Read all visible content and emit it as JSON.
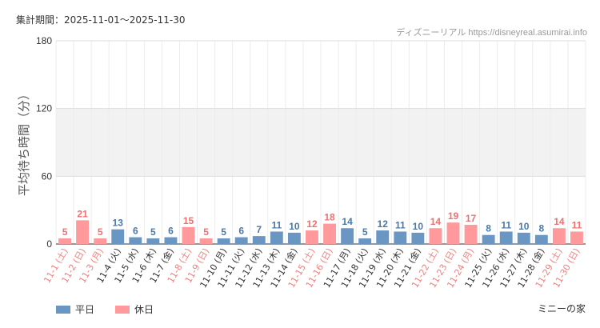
{
  "period_text": "集計期間：2025-11-01〜2025-11-30",
  "source_text": "ディズニーリアル https://disneyreal.asumirai.info",
  "attraction_name": "ミニーの家",
  "colors": {
    "weekday": "#6a96c4",
    "holiday": "#ff999c",
    "weekday_label": "#333333",
    "holiday_label": "#f08080",
    "weekday_value": "#4a78a8",
    "holiday_value": "#f07070"
  },
  "chart_data": {
    "type": "bar",
    "title": "",
    "xlabel": "",
    "ylabel": "平均待ち時間（分）",
    "ylim": [
      0,
      180
    ],
    "yticks": [
      0,
      60,
      120,
      180
    ],
    "categories": [
      "11-1 (土)",
      "11-2 (日)",
      "11-3 (月)",
      "11-4 (火)",
      "11-5 (水)",
      "11-6 (木)",
      "11-7 (金)",
      "11-8 (土)",
      "11-9 (日)",
      "11-10 (月)",
      "11-11 (火)",
      "11-12 (水)",
      "11-13 (木)",
      "11-14 (金)",
      "11-15 (土)",
      "11-16 (日)",
      "11-17 (月)",
      "11-18 (火)",
      "11-19 (水)",
      "11-20 (木)",
      "11-21 (金)",
      "11-22 (土)",
      "11-23 (日)",
      "11-24 (月)",
      "11-25 (火)",
      "11-26 (水)",
      "11-27 (木)",
      "11-28 (金)",
      "11-29 (土)",
      "11-30 (日)"
    ],
    "values": [
      5,
      21,
      5,
      13,
      6,
      5,
      6,
      15,
      5,
      5,
      6,
      7,
      11,
      10,
      12,
      18,
      14,
      5,
      12,
      11,
      10,
      14,
      19,
      17,
      8,
      11,
      10,
      8,
      14,
      11
    ],
    "day_type": [
      "holiday",
      "holiday",
      "holiday",
      "weekday",
      "weekday",
      "weekday",
      "weekday",
      "holiday",
      "holiday",
      "weekday",
      "weekday",
      "weekday",
      "weekday",
      "weekday",
      "holiday",
      "holiday",
      "weekday",
      "weekday",
      "weekday",
      "weekday",
      "weekday",
      "holiday",
      "holiday",
      "holiday",
      "weekday",
      "weekday",
      "weekday",
      "weekday",
      "holiday",
      "holiday"
    ],
    "legend": [
      {
        "name": "平日",
        "type": "weekday"
      },
      {
        "name": "休日",
        "type": "holiday"
      }
    ],
    "legend_position": "bottom-left",
    "grid": true
  }
}
